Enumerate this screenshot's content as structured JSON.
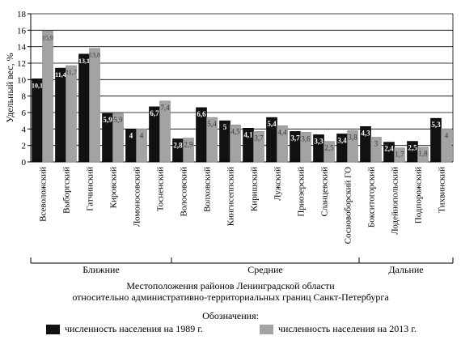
{
  "chart_data": {
    "type": "bar",
    "ylabel": "Удельный вес, %",
    "ylim": [
      0,
      18
    ],
    "yticks": [
      0,
      2,
      4,
      6,
      8,
      10,
      12,
      14,
      16,
      18
    ],
    "grid": true,
    "categories": [
      "Всеволожский",
      "Выборгский",
      "Гатчинский",
      "Кировский",
      "Ломоносовский",
      "Тосненский",
      "Волосовский",
      "Волховский",
      "Кингисеппский",
      "Киришский",
      "Лужский",
      "Приозерский",
      "Сланцевский",
      "Сосновоборский ГО",
      "Бокситогорский",
      "Лодейнопольский",
      "Подпорожский",
      "Тихвинский"
    ],
    "series": [
      {
        "name": "численность населения на 1989 г.",
        "color": "#111111",
        "values": [
          10.1,
          11.4,
          13.1,
          5.9,
          4,
          6.7,
          2.8,
          6.6,
          5,
          4.1,
          5.4,
          3.7,
          3.3,
          3.4,
          4.3,
          2.4,
          2.5,
          5.3
        ],
        "labels": [
          "10,1",
          "11,4",
          "13,1",
          "5,9",
          "4",
          "6,7",
          "2,8",
          "6,6",
          "5",
          "4,1",
          "5,4",
          "3,7",
          "3,3",
          "3,4",
          "4,3",
          "2,4",
          "2,5",
          "5,3"
        ]
      },
      {
        "name": "численность населения на 2013 г.",
        "color": "#a3a3a3",
        "values": [
          15.9,
          11.7,
          13.8,
          5.9,
          4,
          7.4,
          2.9,
          5.4,
          4.5,
          3.7,
          4.4,
          3.6,
          2.5,
          3.8,
          3,
          1.7,
          1.8,
          4
        ],
        "labels": [
          "15,9",
          "11,7",
          "13,8",
          "5,9",
          "4",
          "7,4",
          "2,9",
          "5,4",
          "4,5",
          "3,7",
          "4,4",
          "3,6",
          "2,5",
          "3,8",
          "3",
          "1,7",
          "1,8",
          "4"
        ]
      }
    ],
    "groups": [
      {
        "label": "Ближние",
        "count": 6
      },
      {
        "label": "Средние",
        "count": 8
      },
      {
        "label": "Дальние",
        "count": 4
      }
    ]
  },
  "caption": {
    "line1": "Местоположения районов Ленинградской области",
    "line2": "относительно административно-территориальных границ Санкт-Петербурга"
  },
  "legend": {
    "title": "Обозначения:",
    "items": [
      {
        "label": "численность населения на 1989 г.",
        "color": "#111111"
      },
      {
        "label": "численность населения на 2013 г.",
        "color": "#a3a3a3"
      }
    ]
  }
}
